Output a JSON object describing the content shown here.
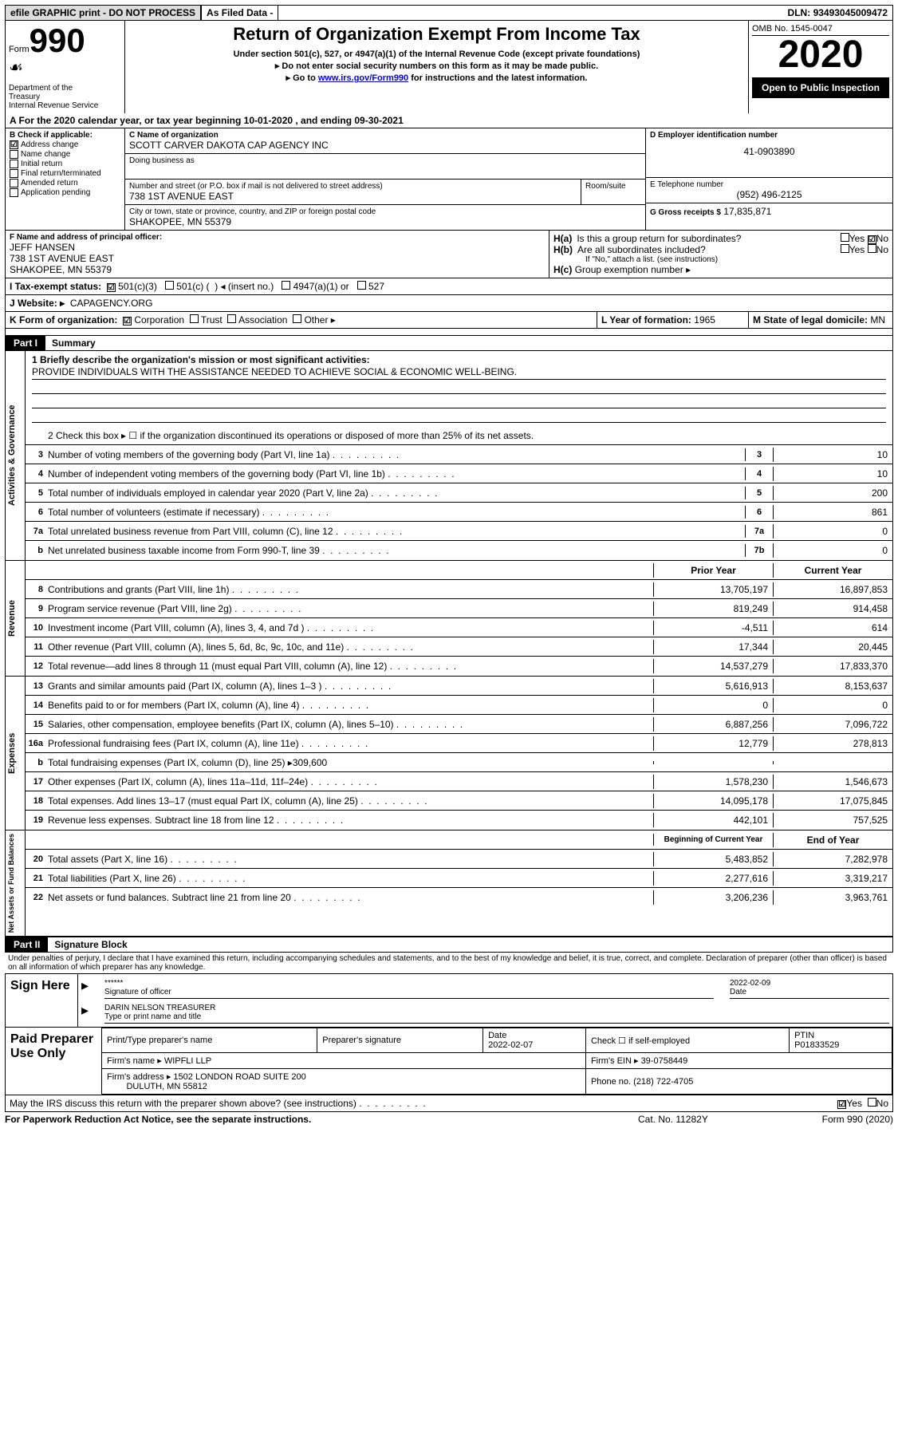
{
  "topbar": {
    "left": "efile GRAPHIC print - DO NOT PROCESS",
    "mid": "As Filed Data -",
    "right_lbl": "DLN:",
    "right_val": "93493045009472"
  },
  "header": {
    "form_prefix": "Form",
    "form_num": "990",
    "dept": "Department of the Treasury\nInternal Revenue Service",
    "title": "Return of Organization Exempt From Income Tax",
    "sub1": "Under section 501(c), 527, or 4947(a)(1) of the Internal Revenue Code (except private foundations)",
    "sub2": "Do not enter social security numbers on this form as it may be made public.",
    "sub3_pre": "Go to ",
    "sub3_link": "www.irs.gov/Form990",
    "sub3_post": " for instructions and the latest information.",
    "omb": "OMB No. 1545-0047",
    "year": "2020",
    "inspect": "Open to Public Inspection"
  },
  "section_a": "A  For the 2020 calendar year, or tax year beginning 10-01-2020   , and ending 09-30-2021",
  "box_b": {
    "title": "B Check if applicable:",
    "items": [
      {
        "checked": true,
        "label": "Address change"
      },
      {
        "checked": false,
        "label": "Name change"
      },
      {
        "checked": false,
        "label": "Initial return"
      },
      {
        "checked": false,
        "label": "Final return/terminated"
      },
      {
        "checked": false,
        "label": "Amended return"
      },
      {
        "checked": false,
        "label": "Application pending"
      }
    ]
  },
  "box_c": {
    "name_lbl": "C Name of organization",
    "name": "SCOTT CARVER DAKOTA CAP AGENCY INC",
    "dba_lbl": "Doing business as",
    "dba": "",
    "addr_lbl": "Number and street (or P.O. box if mail is not delivered to street address)",
    "room_lbl": "Room/suite",
    "addr": "738 1ST AVENUE EAST",
    "city_lbl": "City or town, state or province, country, and ZIP or foreign postal code",
    "city": "SHAKOPEE, MN  55379"
  },
  "box_d": {
    "lbl": "D Employer identification number",
    "val": "41-0903890"
  },
  "box_e": {
    "lbl": "E Telephone number",
    "val": "(952) 496-2125"
  },
  "box_g": {
    "lbl": "G Gross receipts $",
    "val": "17,835,871"
  },
  "box_f": {
    "lbl": "F  Name and address of principal officer:",
    "name": "JEFF HANSEN",
    "addr1": "738 1ST AVENUE EAST",
    "addr2": "SHAKOPEE, MN  55379"
  },
  "box_h": {
    "a_lbl": "H(a)  Is this a group return for subordinates?",
    "a_yes": false,
    "a_no": true,
    "b_lbl": "H(b)  Are all subordinates included?",
    "b_yes": false,
    "b_no": false,
    "b_note": "If \"No,\" attach a list. (see instructions)",
    "c_lbl": "H(c)  Group exemption number ▸"
  },
  "box_i": {
    "lbl": "I   Tax-exempt status:",
    "c501c3": true,
    "c501c": false,
    "insert": "◂ (insert no.)",
    "c4947": false,
    "c527": false
  },
  "box_j": {
    "lbl": "J   Website: ▸",
    "val": "CAPAGENCY.ORG"
  },
  "box_k": {
    "lbl": "K Form of organization:",
    "corp": true,
    "trust": false,
    "assoc": false,
    "other_lbl": "Other ▸"
  },
  "box_l": {
    "lbl": "L Year of formation:",
    "val": "1965"
  },
  "box_m": {
    "lbl": "M State of legal domicile:",
    "val": "MN"
  },
  "part1": {
    "tag": "Part I",
    "title": "Summary"
  },
  "mission": {
    "q": "1 Briefly describe the organization's mission or most significant activities:",
    "val": "PROVIDE INDIVIDUALS WITH THE ASSISTANCE NEEDED TO ACHIEVE SOCIAL & ECONOMIC WELL-BEING."
  },
  "line2": "2   Check this box ▸ ☐ if the organization discontinued its operations or disposed of more than 25% of its net assets.",
  "govlines": [
    {
      "n": "3",
      "t": "Number of voting members of the governing body (Part VI, line 1a)",
      "c": "3",
      "v": "10"
    },
    {
      "n": "4",
      "t": "Number of independent voting members of the governing body (Part VI, line 1b)",
      "c": "4",
      "v": "10"
    },
    {
      "n": "5",
      "t": "Total number of individuals employed in calendar year 2020 (Part V, line 2a)",
      "c": "5",
      "v": "200"
    },
    {
      "n": "6",
      "t": "Total number of volunteers (estimate if necessary)",
      "c": "6",
      "v": "861"
    },
    {
      "n": "7a",
      "t": "Total unrelated business revenue from Part VIII, column (C), line 12",
      "c": "7a",
      "v": "0"
    },
    {
      "n": "b",
      "t": "Net unrelated business taxable income from Form 990-T, line 39",
      "c": "7b",
      "v": "0"
    }
  ],
  "revhdr": {
    "p": "Prior Year",
    "c": "Current Year"
  },
  "revenue": [
    {
      "n": "8",
      "t": "Contributions and grants (Part VIII, line 1h)",
      "p": "13,705,197",
      "c": "16,897,853"
    },
    {
      "n": "9",
      "t": "Program service revenue (Part VIII, line 2g)",
      "p": "819,249",
      "c": "914,458"
    },
    {
      "n": "10",
      "t": "Investment income (Part VIII, column (A), lines 3, 4, and 7d )",
      "p": "-4,511",
      "c": "614"
    },
    {
      "n": "11",
      "t": "Other revenue (Part VIII, column (A), lines 5, 6d, 8c, 9c, 10c, and 11e)",
      "p": "17,344",
      "c": "20,445"
    },
    {
      "n": "12",
      "t": "Total revenue—add lines 8 through 11 (must equal Part VIII, column (A), line 12)",
      "p": "14,537,279",
      "c": "17,833,370"
    }
  ],
  "expenses": [
    {
      "n": "13",
      "t": "Grants and similar amounts paid (Part IX, column (A), lines 1–3 )",
      "p": "5,616,913",
      "c": "8,153,637"
    },
    {
      "n": "14",
      "t": "Benefits paid to or for members (Part IX, column (A), line 4)",
      "p": "0",
      "c": "0"
    },
    {
      "n": "15",
      "t": "Salaries, other compensation, employee benefits (Part IX, column (A), lines 5–10)",
      "p": "6,887,256",
      "c": "7,096,722"
    },
    {
      "n": "16a",
      "t": "Professional fundraising fees (Part IX, column (A), line 11e)",
      "p": "12,779",
      "c": "278,813"
    },
    {
      "n": "b",
      "t": "Total fundraising expenses (Part IX, column (D), line 25) ▸309,600",
      "p": "",
      "c": ""
    },
    {
      "n": "17",
      "t": "Other expenses (Part IX, column (A), lines 11a–11d, 11f–24e)",
      "p": "1,578,230",
      "c": "1,546,673"
    },
    {
      "n": "18",
      "t": "Total expenses. Add lines 13–17 (must equal Part IX, column (A), line 25)",
      "p": "14,095,178",
      "c": "17,075,845"
    },
    {
      "n": "19",
      "t": "Revenue less expenses. Subtract line 18 from line 12",
      "p": "442,101",
      "c": "757,525"
    }
  ],
  "nethdr": {
    "p": "Beginning of Current Year",
    "c": "End of Year"
  },
  "netassets": [
    {
      "n": "20",
      "t": "Total assets (Part X, line 16)",
      "p": "5,483,852",
      "c": "7,282,978"
    },
    {
      "n": "21",
      "t": "Total liabilities (Part X, line 26)",
      "p": "2,277,616",
      "c": "3,319,217"
    },
    {
      "n": "22",
      "t": "Net assets or fund balances. Subtract line 21 from line 20",
      "p": "3,206,236",
      "c": "3,963,761"
    }
  ],
  "sidelabels": {
    "gov": "Activities & Governance",
    "rev": "Revenue",
    "exp": "Expenses",
    "net": "Net Assets or Fund Balances"
  },
  "part2": {
    "tag": "Part II",
    "title": "Signature Block"
  },
  "perjury": "Under penalties of perjury, I declare that I have examined this return, including accompanying schedules and statements, and to the best of my knowledge and belief, it is true, correct, and complete. Declaration of preparer (other than officer) is based on all information of which preparer has any knowledge.",
  "sign": {
    "lbl": "Sign Here",
    "stars": "******",
    "sig_lbl": "Signature of officer",
    "date": "2022-02-09",
    "date_lbl": "Date",
    "name": "DARIN NELSON TREASURER",
    "name_lbl": "Type or print name and title"
  },
  "prep": {
    "lbl": "Paid Preparer Use Only",
    "name_hdr": "Print/Type preparer's name",
    "sig_hdr": "Preparer's signature",
    "date_hdr": "Date",
    "date": "2022-02-07",
    "check_lbl": "Check ☐ if self-employed",
    "ptin_lbl": "PTIN",
    "ptin": "P01833529",
    "firm_name_lbl": "Firm's name   ▸",
    "firm_name": "WIPFLI LLP",
    "firm_ein_lbl": "Firm's EIN ▸",
    "firm_ein": "39-0758449",
    "firm_addr_lbl": "Firm's address ▸",
    "firm_addr1": "1502 LONDON ROAD SUITE 200",
    "firm_addr2": "DULUTH, MN  55812",
    "phone_lbl": "Phone no.",
    "phone": "(218) 722-4705"
  },
  "discuss": {
    "q": "May the IRS discuss this return with the preparer shown above? (see instructions)",
    "yes": true,
    "no": false
  },
  "footer": {
    "left": "For Paperwork Reduction Act Notice, see the separate instructions.",
    "mid": "Cat. No. 11282Y",
    "right": "Form 990 (2020)"
  }
}
